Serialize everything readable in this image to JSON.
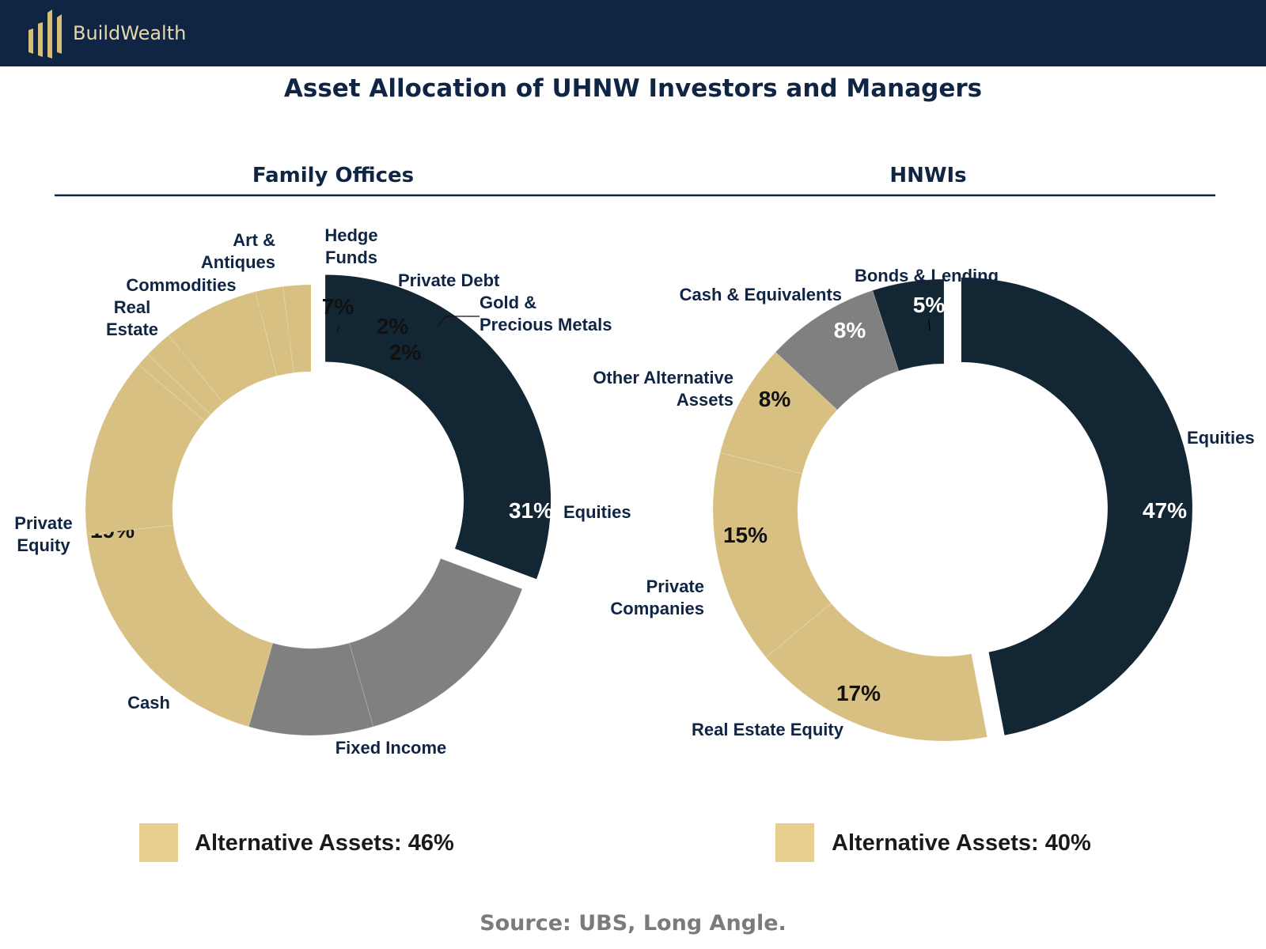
{
  "header": {
    "brand": "BuildWealth",
    "logo_icon": "buildwealth-bars-logo",
    "bg_color": "#0f2543",
    "logo_color": "#d8bf78"
  },
  "title": "Asset Allocation of UHNW Investors and Managers",
  "colors": {
    "alternatives": "#d8c083",
    "equities": "#132634",
    "fixed_and_cash": "#808080",
    "legend_swatch": "#e9cf8f",
    "heading": "#0f2543"
  },
  "chart_data": [
    {
      "type": "donut",
      "title": "Family Offices",
      "slices": [
        {
          "label": "Equities",
          "value": 31,
          "value_label": "31%",
          "group": "equities",
          "exploded": true
        },
        {
          "label": "Fixed Income",
          "value": 15,
          "value_label": "15%",
          "group": "fixed"
        },
        {
          "label": "Cash",
          "value": 9,
          "value_label": "9%",
          "group": "fixed"
        },
        {
          "label": "Private Equity",
          "value": 19,
          "value_label": "19%",
          "group": "alternative"
        },
        {
          "label": "Real Estate",
          "value": 13,
          "value_label": "13%",
          "group": "alternative"
        },
        {
          "label": "Commodities",
          "value": 1,
          "value_label": "1%",
          "group": "alternative"
        },
        {
          "label": "Art & Antiques",
          "value": 2,
          "value_label": "2%",
          "group": "alternative"
        },
        {
          "label": "Hedge Funds",
          "value": 7,
          "value_label": "7%",
          "group": "alternative"
        },
        {
          "label": "Private Debt",
          "value": 2,
          "value_label": "2%",
          "group": "alternative"
        },
        {
          "label": "Gold & Precious Metals",
          "value": 2,
          "value_label": "2%",
          "group": "alternative"
        }
      ],
      "legend": "Alternative Assets: 46%"
    },
    {
      "type": "donut",
      "title": "HNWIs",
      "slices": [
        {
          "label": "Equities",
          "value": 47,
          "value_label": "47%",
          "group": "equities",
          "exploded": true
        },
        {
          "label": "Real Estate Equity",
          "value": 17,
          "value_label": "17%",
          "group": "alternative"
        },
        {
          "label": "Private Companies",
          "value": 15,
          "value_label": "15%",
          "group": "alternative"
        },
        {
          "label": "Other Alternative Assets",
          "value": 8,
          "value_label": "8%",
          "group": "alternative"
        },
        {
          "label": "Cash & Equivalents",
          "value": 8,
          "value_label": "8%",
          "group": "fixed"
        },
        {
          "label": "Bonds & Lending",
          "value": 5,
          "value_label": "5%",
          "group": "equities"
        }
      ],
      "legend": "Alternative Assets: 40%"
    }
  ],
  "source": "Source: UBS, Long Angle."
}
